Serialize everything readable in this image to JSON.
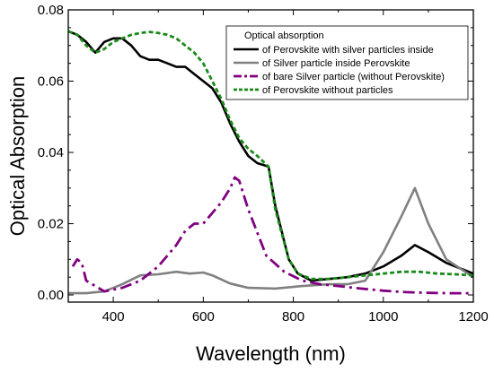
{
  "chart_data": {
    "type": "line",
    "xlabel": "Wavelength (nm)",
    "ylabel": "Optical Absorption",
    "xlim": [
      300,
      1200
    ],
    "ylim": [
      -0.002,
      0.08
    ],
    "x_ticks": [
      400,
      600,
      800,
      1000,
      1200
    ],
    "y_ticks": [
      0.0,
      0.02,
      0.04,
      0.06,
      0.08
    ],
    "y_tick_labels": [
      "0.00",
      "0.02",
      "0.04",
      "0.06",
      "0.08"
    ],
    "grid": false,
    "legend": {
      "title": "Optical absorption",
      "placement": "top-right"
    },
    "series": [
      {
        "name": "of Perovskite with silver particles inside",
        "color": "#000000",
        "style": "solid",
        "x": [
          300,
          320,
          340,
          360,
          380,
          400,
          420,
          440,
          460,
          480,
          500,
          520,
          540,
          560,
          580,
          600,
          620,
          640,
          660,
          680,
          700,
          720,
          745,
          760,
          790,
          810,
          840,
          880,
          920,
          960,
          1000,
          1040,
          1070,
          1100,
          1140,
          1200
        ],
        "y": [
          0.074,
          0.073,
          0.071,
          0.068,
          0.071,
          0.072,
          0.072,
          0.07,
          0.067,
          0.066,
          0.066,
          0.065,
          0.064,
          0.064,
          0.062,
          0.06,
          0.058,
          0.054,
          0.048,
          0.043,
          0.039,
          0.037,
          0.036,
          0.025,
          0.01,
          0.006,
          0.004,
          0.0045,
          0.005,
          0.006,
          0.008,
          0.011,
          0.014,
          0.012,
          0.009,
          0.006
        ]
      },
      {
        "name": "of Silver particle inside Perovskite",
        "color": "#808080",
        "style": "solid",
        "x": [
          300,
          340,
          380,
          420,
          460,
          500,
          540,
          570,
          600,
          620,
          660,
          700,
          760,
          820,
          880,
          920,
          960,
          1000,
          1040,
          1070,
          1100,
          1140,
          1200
        ],
        "y": [
          0.0005,
          0.0005,
          0.001,
          0.003,
          0.0055,
          0.0058,
          0.0065,
          0.006,
          0.0063,
          0.0055,
          0.0032,
          0.002,
          0.0018,
          0.0025,
          0.003,
          0.003,
          0.004,
          0.012,
          0.022,
          0.03,
          0.02,
          0.01,
          0.005
        ]
      },
      {
        "name": "of bare Silver particle (without Perovskite)",
        "color": "#800080",
        "style": "dashdot",
        "x": [
          310,
          320,
          330,
          340,
          360,
          380,
          420,
          460,
          500,
          540,
          560,
          580,
          600,
          620,
          640,
          660,
          670,
          680,
          700,
          740,
          780,
          820,
          860,
          900,
          950,
          1000,
          1050,
          1100,
          1150,
          1200
        ],
        "y": [
          0.008,
          0.01,
          0.009,
          0.004,
          0.0025,
          0.001,
          0.002,
          0.004,
          0.008,
          0.014,
          0.018,
          0.02,
          0.02,
          0.023,
          0.026,
          0.03,
          0.033,
          0.032,
          0.024,
          0.011,
          0.0065,
          0.004,
          0.003,
          0.0025,
          0.0018,
          0.0012,
          0.0008,
          0.0006,
          0.0005,
          0.0005
        ]
      },
      {
        "name": "of Perovskite without particles",
        "color": "#1a8a1a",
        "style": "dashed",
        "x": [
          300,
          320,
          340,
          360,
          380,
          400,
          420,
          440,
          460,
          480,
          500,
          520,
          540,
          560,
          580,
          600,
          620,
          640,
          660,
          680,
          700,
          720,
          745,
          760,
          790,
          810,
          840,
          880,
          920,
          960,
          1000,
          1040,
          1080,
          1120,
          1160,
          1200
        ],
        "y": [
          0.074,
          0.073,
          0.07,
          0.068,
          0.069,
          0.071,
          0.072,
          0.073,
          0.0735,
          0.0738,
          0.0735,
          0.073,
          0.072,
          0.07,
          0.068,
          0.065,
          0.06,
          0.055,
          0.049,
          0.044,
          0.041,
          0.039,
          0.036,
          0.024,
          0.01,
          0.006,
          0.0045,
          0.0045,
          0.005,
          0.0055,
          0.006,
          0.0065,
          0.0065,
          0.006,
          0.0058,
          0.0055
        ]
      }
    ]
  }
}
